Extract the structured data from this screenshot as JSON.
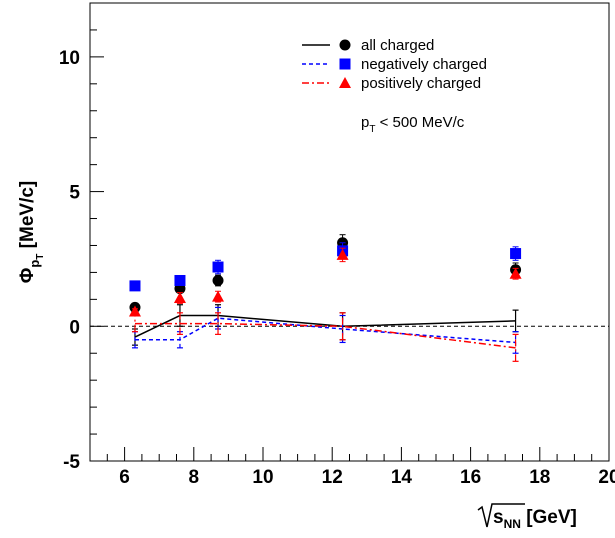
{
  "chart_data": {
    "type": "scatter",
    "x_axis": {
      "label": "√sNN [GeV]",
      "label_radicand": "s",
      "label_sub": "NN",
      "label_unit": "[GeV]",
      "range": [
        5,
        20
      ],
      "tick_values": [
        6,
        8,
        10,
        12,
        14,
        16,
        18,
        20
      ],
      "tick_labels": [
        "6",
        "8",
        "10",
        "12",
        "14",
        "16",
        "18",
        "20"
      ]
    },
    "y_axis": {
      "label": "Φ pT [MeV/c]",
      "label_symbol": "Φ",
      "label_sub": "p",
      "label_subsub": "T",
      "label_unit": "[MeV/c]",
      "range": [
        -5,
        12
      ],
      "tick_values": [
        -5,
        0,
        5,
        10
      ],
      "tick_labels": [
        "-5",
        "0",
        "5",
        "10"
      ]
    },
    "zero_line": true,
    "grid": false,
    "legend_position": "top-right",
    "annotation": {
      "text": "p",
      "sub": "T",
      "rest": " < 500 MeV/c"
    },
    "series": [
      {
        "name": "all charged",
        "marker": "circle",
        "color": "#000000",
        "line_style": "solid",
        "x": [
          6.3,
          7.6,
          8.7,
          12.3,
          17.3
        ],
        "y": [
          0.7,
          1.4,
          1.7,
          3.1,
          2.1
        ],
        "y_err": [
          0.1,
          0.15,
          0.2,
          0.3,
          0.25
        ],
        "band": [
          -0.4,
          0.4,
          0.4,
          0.0,
          0.2
        ],
        "band_err": [
          0.3,
          0.4,
          0.4,
          0.5,
          0.4
        ]
      },
      {
        "name": "negatively charged",
        "marker": "square",
        "color": "#0000ff",
        "line_style": "dashed",
        "x": [
          6.3,
          7.6,
          8.7,
          12.3,
          17.3
        ],
        "y": [
          1.5,
          1.7,
          2.2,
          2.8,
          2.7
        ],
        "y_err": [
          0.1,
          0.15,
          0.25,
          0.3,
          0.25
        ],
        "band": [
          -0.5,
          -0.5,
          0.3,
          -0.1,
          -0.6
        ],
        "band_err": [
          0.3,
          0.3,
          0.4,
          0.5,
          0.4
        ]
      },
      {
        "name": "positively charged",
        "marker": "triangle",
        "color": "#ff0000",
        "line_style": "dashdot",
        "x": [
          6.3,
          7.6,
          8.7,
          12.3,
          17.3
        ],
        "y": [
          0.55,
          1.05,
          1.1,
          2.65,
          1.95
        ],
        "y_err": [
          0.1,
          0.2,
          0.2,
          0.25,
          0.2
        ],
        "band": [
          0.1,
          0.1,
          0.1,
          0.0,
          -0.8
        ],
        "band_err": [
          0.3,
          0.4,
          0.4,
          0.5,
          0.5
        ]
      }
    ]
  }
}
